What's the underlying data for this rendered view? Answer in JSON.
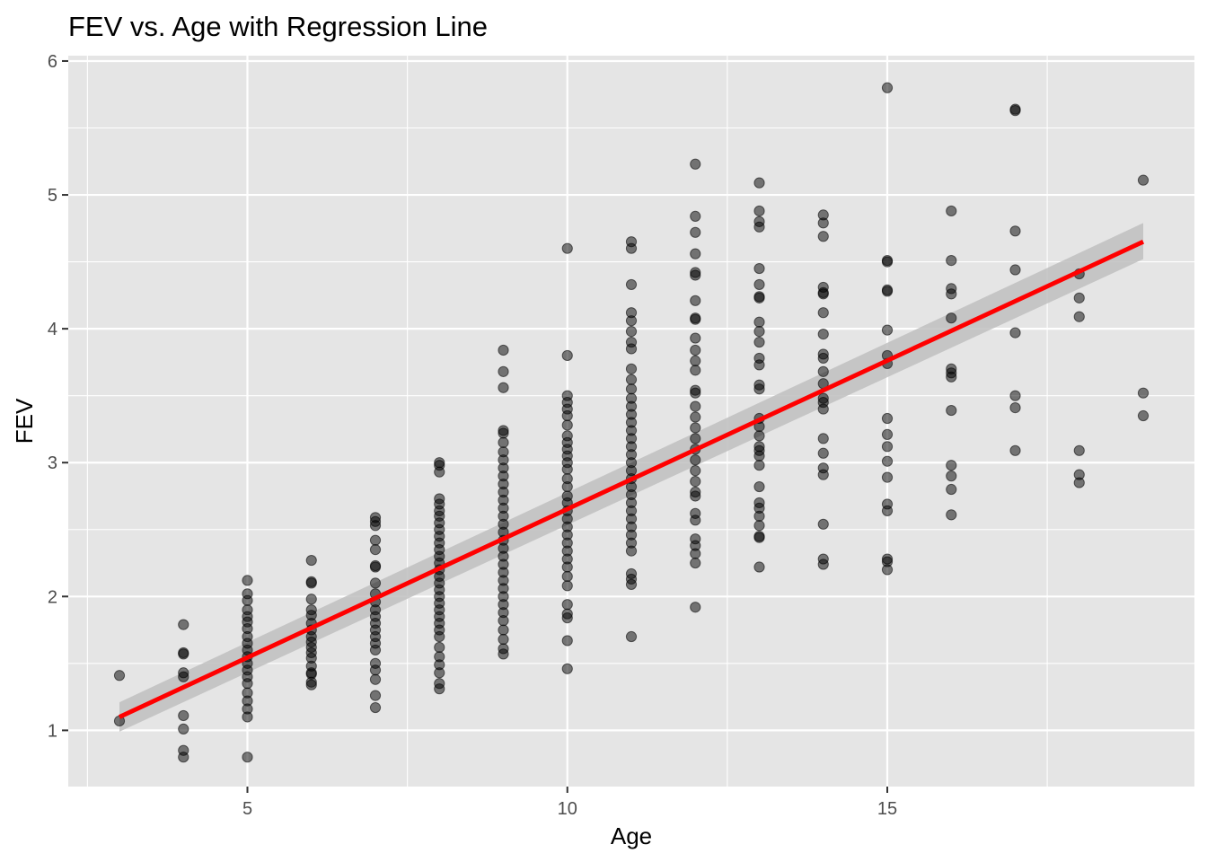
{
  "chart_data": {
    "type": "scatter",
    "title": "FEV vs. Age with Regression Line",
    "xlabel": "Age",
    "ylabel": "FEV",
    "xlim": [
      2.2,
      19.8
    ],
    "ylim": [
      0.58,
      6.04
    ],
    "x_ticks": [
      5,
      10,
      15
    ],
    "x_tick_labels": [
      "5",
      "10",
      "15"
    ],
    "y_ticks": [
      1,
      2,
      3,
      4,
      5,
      6
    ],
    "y_tick_labels": [
      "1",
      "2",
      "3",
      "4",
      "5",
      "6"
    ],
    "grid": true,
    "legend": "none",
    "colors": {
      "panel": "#e5e5e5",
      "grid": "#ffffff",
      "points": "#000000",
      "regression_line": "#ff0000",
      "confidence_band": "#bfbfbf"
    },
    "regression": {
      "x": [
        3,
        19
      ],
      "y": [
        1.1,
        4.65
      ],
      "ci_lower": [
        0.99,
        4.52
      ],
      "ci_upper": [
        1.21,
        4.79
      ]
    },
    "points": [
      [
        3,
        1.41
      ],
      [
        3,
        1.07
      ],
      [
        4,
        1.79
      ],
      [
        4,
        1.58
      ],
      [
        4,
        1.57
      ],
      [
        4,
        1.43
      ],
      [
        4,
        1.4
      ],
      [
        4,
        1.11
      ],
      [
        4,
        1.01
      ],
      [
        4,
        0.85
      ],
      [
        4,
        0.8
      ],
      [
        5,
        2.12
      ],
      [
        5,
        2.02
      ],
      [
        5,
        1.97
      ],
      [
        5,
        1.9
      ],
      [
        5,
        1.85
      ],
      [
        5,
        1.81
      ],
      [
        5,
        1.76
      ],
      [
        5,
        1.7
      ],
      [
        5,
        1.65
      ],
      [
        5,
        1.6
      ],
      [
        5,
        1.55
      ],
      [
        5,
        1.5
      ],
      [
        5,
        1.45
      ],
      [
        5,
        1.4
      ],
      [
        5,
        1.35
      ],
      [
        5,
        1.28
      ],
      [
        5,
        1.22
      ],
      [
        5,
        1.16
      ],
      [
        5,
        1.1
      ],
      [
        5,
        0.8
      ],
      [
        6,
        2.27
      ],
      [
        6,
        2.11
      ],
      [
        6,
        2.1
      ],
      [
        6,
        1.98
      ],
      [
        6,
        1.9
      ],
      [
        6,
        1.86
      ],
      [
        6,
        1.8
      ],
      [
        6,
        1.75
      ],
      [
        6,
        1.7
      ],
      [
        6,
        1.66
      ],
      [
        6,
        1.62
      ],
      [
        6,
        1.58
      ],
      [
        6,
        1.54
      ],
      [
        6,
        1.48
      ],
      [
        6,
        1.43
      ],
      [
        6,
        1.42
      ],
      [
        6,
        1.36
      ],
      [
        6,
        1.34
      ],
      [
        7,
        2.59
      ],
      [
        7,
        2.56
      ],
      [
        7,
        2.53
      ],
      [
        7,
        2.42
      ],
      [
        7,
        2.35
      ],
      [
        7,
        2.23
      ],
      [
        7,
        2.22
      ],
      [
        7,
        2.1
      ],
      [
        7,
        2.02
      ],
      [
        7,
        1.96
      ],
      [
        7,
        1.9
      ],
      [
        7,
        1.85
      ],
      [
        7,
        1.8
      ],
      [
        7,
        1.75
      ],
      [
        7,
        1.7
      ],
      [
        7,
        1.65
      ],
      [
        7,
        1.6
      ],
      [
        7,
        1.5
      ],
      [
        7,
        1.45
      ],
      [
        7,
        1.38
      ],
      [
        7,
        1.26
      ],
      [
        7,
        1.17
      ],
      [
        8,
        3.0
      ],
      [
        8,
        2.98
      ],
      [
        8,
        2.93
      ],
      [
        8,
        2.73
      ],
      [
        8,
        2.69
      ],
      [
        8,
        2.64
      ],
      [
        8,
        2.6
      ],
      [
        8,
        2.55
      ],
      [
        8,
        2.5
      ],
      [
        8,
        2.45
      ],
      [
        8,
        2.4
      ],
      [
        8,
        2.35
      ],
      [
        8,
        2.3
      ],
      [
        8,
        2.25
      ],
      [
        8,
        2.2
      ],
      [
        8,
        2.15
      ],
      [
        8,
        2.1
      ],
      [
        8,
        2.05
      ],
      [
        8,
        2.0
      ],
      [
        8,
        1.95
      ],
      [
        8,
        1.9
      ],
      [
        8,
        1.85
      ],
      [
        8,
        1.8
      ],
      [
        8,
        1.75
      ],
      [
        8,
        1.7
      ],
      [
        8,
        1.62
      ],
      [
        8,
        1.55
      ],
      [
        8,
        1.49
      ],
      [
        8,
        1.43
      ],
      [
        8,
        1.35
      ],
      [
        8,
        1.31
      ],
      [
        9,
        3.84
      ],
      [
        9,
        3.68
      ],
      [
        9,
        3.56
      ],
      [
        9,
        3.24
      ],
      [
        9,
        3.22
      ],
      [
        9,
        3.15
      ],
      [
        9,
        3.08
      ],
      [
        9,
        3.02
      ],
      [
        9,
        2.96
      ],
      [
        9,
        2.9
      ],
      [
        9,
        2.84
      ],
      [
        9,
        2.78
      ],
      [
        9,
        2.72
      ],
      [
        9,
        2.66
      ],
      [
        9,
        2.6
      ],
      [
        9,
        2.54
      ],
      [
        9,
        2.48
      ],
      [
        9,
        2.42
      ],
      [
        9,
        2.36
      ],
      [
        9,
        2.3
      ],
      [
        9,
        2.24
      ],
      [
        9,
        2.18
      ],
      [
        9,
        2.12
      ],
      [
        9,
        2.06
      ],
      [
        9,
        2.0
      ],
      [
        9,
        1.94
      ],
      [
        9,
        1.88
      ],
      [
        9,
        1.82
      ],
      [
        9,
        1.75
      ],
      [
        9,
        1.68
      ],
      [
        9,
        1.61
      ],
      [
        9,
        1.57
      ],
      [
        10,
        4.6
      ],
      [
        10,
        3.8
      ],
      [
        10,
        3.5
      ],
      [
        10,
        3.45
      ],
      [
        10,
        3.4
      ],
      [
        10,
        3.35
      ],
      [
        10,
        3.28
      ],
      [
        10,
        3.2
      ],
      [
        10,
        3.15
      ],
      [
        10,
        3.1
      ],
      [
        10,
        3.05
      ],
      [
        10,
        3.0
      ],
      [
        10,
        2.95
      ],
      [
        10,
        2.88
      ],
      [
        10,
        2.82
      ],
      [
        10,
        2.75
      ],
      [
        10,
        2.7
      ],
      [
        10,
        2.64
      ],
      [
        10,
        2.58
      ],
      [
        10,
        2.52
      ],
      [
        10,
        2.46
      ],
      [
        10,
        2.4
      ],
      [
        10,
        2.34
      ],
      [
        10,
        2.28
      ],
      [
        10,
        2.22
      ],
      [
        10,
        2.15
      ],
      [
        10,
        2.08
      ],
      [
        10,
        1.94
      ],
      [
        10,
        1.87
      ],
      [
        10,
        1.84
      ],
      [
        10,
        1.67
      ],
      [
        10,
        1.46
      ],
      [
        11,
        4.65
      ],
      [
        11,
        4.6
      ],
      [
        11,
        4.33
      ],
      [
        11,
        4.12
      ],
      [
        11,
        4.06
      ],
      [
        11,
        3.98
      ],
      [
        11,
        3.9
      ],
      [
        11,
        3.85
      ],
      [
        11,
        3.7
      ],
      [
        11,
        3.62
      ],
      [
        11,
        3.55
      ],
      [
        11,
        3.48
      ],
      [
        11,
        3.42
      ],
      [
        11,
        3.36
      ],
      [
        11,
        3.3
      ],
      [
        11,
        3.24
      ],
      [
        11,
        3.18
      ],
      [
        11,
        3.12
      ],
      [
        11,
        3.06
      ],
      [
        11,
        3.0
      ],
      [
        11,
        2.94
      ],
      [
        11,
        2.88
      ],
      [
        11,
        2.82
      ],
      [
        11,
        2.76
      ],
      [
        11,
        2.7
      ],
      [
        11,
        2.64
      ],
      [
        11,
        2.58
      ],
      [
        11,
        2.52
      ],
      [
        11,
        2.46
      ],
      [
        11,
        2.4
      ],
      [
        11,
        2.34
      ],
      [
        11,
        2.17
      ],
      [
        11,
        2.13
      ],
      [
        11,
        2.09
      ],
      [
        11,
        1.7
      ],
      [
        12,
        5.23
      ],
      [
        12,
        4.84
      ],
      [
        12,
        4.72
      ],
      [
        12,
        4.56
      ],
      [
        12,
        4.42
      ],
      [
        12,
        4.4
      ],
      [
        12,
        4.21
      ],
      [
        12,
        4.08
      ],
      [
        12,
        4.07
      ],
      [
        12,
        3.93
      ],
      [
        12,
        3.84
      ],
      [
        12,
        3.76
      ],
      [
        12,
        3.69
      ],
      [
        12,
        3.54
      ],
      [
        12,
        3.52
      ],
      [
        12,
        3.42
      ],
      [
        12,
        3.34
      ],
      [
        12,
        3.26
      ],
      [
        12,
        3.18
      ],
      [
        12,
        3.1
      ],
      [
        12,
        3.02
      ],
      [
        12,
        2.94
      ],
      [
        12,
        2.86
      ],
      [
        12,
        2.78
      ],
      [
        12,
        2.75
      ],
      [
        12,
        2.62
      ],
      [
        12,
        2.57
      ],
      [
        12,
        2.43
      ],
      [
        12,
        2.38
      ],
      [
        12,
        2.32
      ],
      [
        12,
        2.25
      ],
      [
        12,
        1.92
      ],
      [
        13,
        5.09
      ],
      [
        13,
        4.88
      ],
      [
        13,
        4.8
      ],
      [
        13,
        4.76
      ],
      [
        13,
        4.45
      ],
      [
        13,
        4.33
      ],
      [
        13,
        4.24
      ],
      [
        13,
        4.23
      ],
      [
        13,
        4.05
      ],
      [
        13,
        3.98
      ],
      [
        13,
        3.9
      ],
      [
        13,
        3.78
      ],
      [
        13,
        3.73
      ],
      [
        13,
        3.58
      ],
      [
        13,
        3.55
      ],
      [
        13,
        3.33
      ],
      [
        13,
        3.27
      ],
      [
        13,
        3.2
      ],
      [
        13,
        3.12
      ],
      [
        13,
        3.09
      ],
      [
        13,
        3.05
      ],
      [
        13,
        2.98
      ],
      [
        13,
        2.82
      ],
      [
        13,
        2.7
      ],
      [
        13,
        2.66
      ],
      [
        13,
        2.6
      ],
      [
        13,
        2.53
      ],
      [
        13,
        2.45
      ],
      [
        13,
        2.44
      ],
      [
        13,
        2.22
      ],
      [
        14,
        4.85
      ],
      [
        14,
        4.79
      ],
      [
        14,
        4.69
      ],
      [
        14,
        4.31
      ],
      [
        14,
        4.27
      ],
      [
        14,
        4.26
      ],
      [
        14,
        4.12
      ],
      [
        14,
        3.96
      ],
      [
        14,
        3.81
      ],
      [
        14,
        3.78
      ],
      [
        14,
        3.68
      ],
      [
        14,
        3.59
      ],
      [
        14,
        3.48
      ],
      [
        14,
        3.45
      ],
      [
        14,
        3.4
      ],
      [
        14,
        3.18
      ],
      [
        14,
        3.07
      ],
      [
        14,
        2.96
      ],
      [
        14,
        2.91
      ],
      [
        14,
        2.54
      ],
      [
        14,
        2.28
      ],
      [
        14,
        2.24
      ],
      [
        15,
        5.8
      ],
      [
        15,
        4.51
      ],
      [
        15,
        4.5
      ],
      [
        15,
        4.29
      ],
      [
        15,
        4.28
      ],
      [
        15,
        3.99
      ],
      [
        15,
        3.8
      ],
      [
        15,
        3.74
      ],
      [
        15,
        3.33
      ],
      [
        15,
        3.21
      ],
      [
        15,
        3.12
      ],
      [
        15,
        3.01
      ],
      [
        15,
        2.89
      ],
      [
        15,
        2.69
      ],
      [
        15,
        2.64
      ],
      [
        15,
        2.28
      ],
      [
        15,
        2.26
      ],
      [
        15,
        2.2
      ],
      [
        16,
        4.88
      ],
      [
        16,
        4.51
      ],
      [
        16,
        4.3
      ],
      [
        16,
        4.26
      ],
      [
        16,
        4.08
      ],
      [
        16,
        3.7
      ],
      [
        16,
        3.67
      ],
      [
        16,
        3.64
      ],
      [
        16,
        3.39
      ],
      [
        16,
        2.98
      ],
      [
        16,
        2.9
      ],
      [
        16,
        2.8
      ],
      [
        16,
        2.61
      ],
      [
        17,
        5.64
      ],
      [
        17,
        5.63
      ],
      [
        17,
        4.73
      ],
      [
        17,
        4.44
      ],
      [
        17,
        3.97
      ],
      [
        17,
        3.5
      ],
      [
        17,
        3.41
      ],
      [
        17,
        3.09
      ],
      [
        18,
        4.41
      ],
      [
        18,
        4.23
      ],
      [
        18,
        4.09
      ],
      [
        18,
        3.09
      ],
      [
        18,
        2.91
      ],
      [
        18,
        2.85
      ],
      [
        19,
        5.11
      ],
      [
        19,
        3.52
      ],
      [
        19,
        3.35
      ]
    ]
  }
}
